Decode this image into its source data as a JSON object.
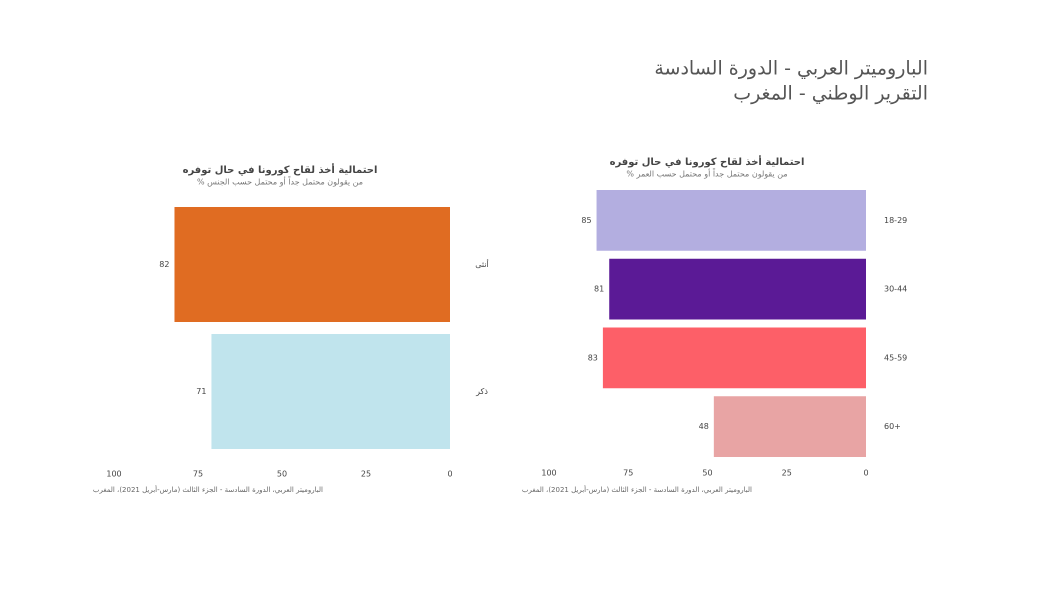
{
  "header": {
    "lines": [
      "الباروميتر العربي - الدورة السادسة",
      "التقرير الوطني - المغرب"
    ]
  },
  "chart_data": [
    {
      "type": "bar",
      "orientation": "horizontal",
      "x_reversed": true,
      "title": "احتمالية أخذ لقاح كورونا في حال توفره",
      "subtitle": "% من يقولون محتمل جداً أو محتمل حسب الجنس",
      "source": "الباروميتر العربي، الدورة السادسة - الجزء الثالث (مارس-أبريل 2021)، المغرب",
      "categories": [
        "أنثى",
        "ذكر"
      ],
      "values": [
        82,
        71
      ],
      "colors": [
        "#e06c22",
        "#c0e4ed"
      ],
      "xlim": [
        0,
        100
      ],
      "xticks": [
        100,
        75,
        50,
        25,
        0
      ],
      "grid": false
    },
    {
      "type": "bar",
      "orientation": "horizontal",
      "x_reversed": true,
      "title": "احتمالية أخذ لقاح كورونا في حال توفره",
      "subtitle": "% من يقولون محتمل جداً أو محتمل حسب العمر",
      "source": "الباروميتر العربي، الدورة السادسة - الجزء الثالث (مارس-أبريل 2021)، المغرب",
      "categories": [
        "18-29",
        "30-44",
        "45-59",
        "60+"
      ],
      "values": [
        85,
        81,
        83,
        48
      ],
      "colors": [
        "#b3aee0",
        "#5b1a96",
        "#fd5f68",
        "#e8a4a4"
      ],
      "xlim": [
        0,
        100
      ],
      "xticks": [
        100,
        75,
        50,
        25,
        0
      ],
      "grid": false
    }
  ]
}
